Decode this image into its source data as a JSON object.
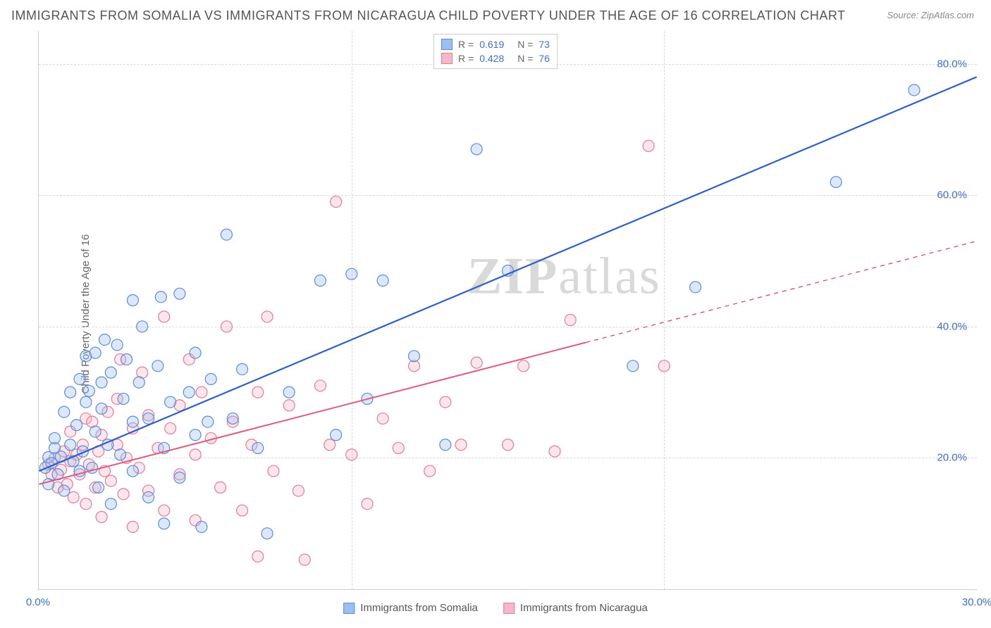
{
  "title": "IMMIGRANTS FROM SOMALIA VS IMMIGRANTS FROM NICARAGUA CHILD POVERTY UNDER THE AGE OF 16 CORRELATION CHART",
  "source": "Source: ZipAtlas.com",
  "ylabel": "Child Poverty Under the Age of 16",
  "watermark_a": "ZIP",
  "watermark_b": "atlas",
  "chart": {
    "type": "scatter",
    "background_color": "#ffffff",
    "grid_color": "#d8d8d8",
    "axis_color": "#cccccc",
    "xlim": [
      0,
      30
    ],
    "ylim": [
      0,
      85
    ],
    "yticks": [
      {
        "v": 20,
        "label": "20.0%"
      },
      {
        "v": 40,
        "label": "40.0%"
      },
      {
        "v": 60,
        "label": "60.0%"
      },
      {
        "v": 80,
        "label": "80.0%"
      }
    ],
    "xticks": [
      {
        "v": 0,
        "label": "0.0%"
      },
      {
        "v": 30,
        "label": "30.0%"
      }
    ],
    "ytick_color": "#3b6fd4",
    "xtick_color": "#3b6fd4",
    "marker_radius": 8,
    "marker_fill_opacity": 0.35,
    "marker_stroke_width": 1.2,
    "series": [
      {
        "name": "Immigrants from Somalia",
        "color_fill": "#9cbef0",
        "color_stroke": "#5a8ddb",
        "trend_color": "#2d5fc9",
        "trend_width": 2.2,
        "R": "0.619",
        "N": "73",
        "trend": {
          "x1": 0,
          "y1": 18,
          "x2": 30,
          "y2": 78,
          "dash_after_x": null
        },
        "points": [
          [
            0.2,
            18.5
          ],
          [
            0.3,
            20.1
          ],
          [
            0.4,
            19.2
          ],
          [
            0.5,
            21.5
          ],
          [
            0.5,
            23.0
          ],
          [
            0.6,
            17.5
          ],
          [
            0.7,
            20.2
          ],
          [
            0.8,
            27.0
          ],
          [
            0.8,
            15.0
          ],
          [
            1.0,
            22.0
          ],
          [
            1.0,
            30.0
          ],
          [
            1.1,
            19.5
          ],
          [
            1.2,
            25.0
          ],
          [
            1.3,
            32.0
          ],
          [
            1.3,
            18.0
          ],
          [
            1.4,
            21.0
          ],
          [
            1.5,
            28.5
          ],
          [
            1.5,
            35.5
          ],
          [
            1.6,
            30.2
          ],
          [
            1.7,
            18.5
          ],
          [
            1.8,
            36.0
          ],
          [
            1.8,
            24.0
          ],
          [
            1.9,
            15.5
          ],
          [
            2.0,
            27.5
          ],
          [
            2.0,
            31.5
          ],
          [
            2.1,
            38.0
          ],
          [
            2.2,
            22.0
          ],
          [
            2.3,
            33.0
          ],
          [
            2.3,
            13.0
          ],
          [
            2.5,
            37.2
          ],
          [
            2.6,
            20.5
          ],
          [
            2.7,
            29.0
          ],
          [
            2.8,
            35.0
          ],
          [
            3.0,
            44.0
          ],
          [
            3.0,
            25.5
          ],
          [
            3.0,
            18.0
          ],
          [
            3.2,
            31.5
          ],
          [
            3.3,
            40.0
          ],
          [
            3.5,
            26.0
          ],
          [
            3.5,
            14.0
          ],
          [
            3.8,
            34.0
          ],
          [
            3.9,
            44.5
          ],
          [
            4.0,
            21.5
          ],
          [
            4.0,
            10.0
          ],
          [
            4.2,
            28.5
          ],
          [
            4.5,
            45.0
          ],
          [
            4.5,
            17.0
          ],
          [
            4.8,
            30.0
          ],
          [
            5.0,
            36.0
          ],
          [
            5.0,
            23.5
          ],
          [
            5.2,
            9.5
          ],
          [
            5.4,
            25.5
          ],
          [
            5.5,
            32.0
          ],
          [
            6.0,
            54.0
          ],
          [
            6.2,
            26.0
          ],
          [
            6.5,
            33.5
          ],
          [
            7.0,
            21.5
          ],
          [
            7.3,
            8.5
          ],
          [
            8.0,
            30.0
          ],
          [
            9.0,
            47.0
          ],
          [
            9.5,
            23.5
          ],
          [
            10.0,
            48.0
          ],
          [
            10.5,
            29.0
          ],
          [
            11.0,
            47.0
          ],
          [
            12.0,
            35.5
          ],
          [
            13.0,
            22.0
          ],
          [
            14.0,
            67.0
          ],
          [
            15.0,
            48.5
          ],
          [
            19.0,
            34.0
          ],
          [
            21.0,
            46.0
          ],
          [
            25.5,
            62.0
          ],
          [
            28.0,
            76.0
          ],
          [
            0.3,
            16.0
          ]
        ]
      },
      {
        "name": "Immigrants from Nicaragua",
        "color_fill": "#f4b8c8",
        "color_stroke": "#e77a9a",
        "trend_color": "#e05a7e",
        "trend_width": 2.0,
        "R": "0.428",
        "N": "76",
        "trend": {
          "x1": 0,
          "y1": 16,
          "x2": 30,
          "y2": 53,
          "dash_after_x": 17.5
        },
        "points": [
          [
            0.3,
            19.0
          ],
          [
            0.4,
            17.5
          ],
          [
            0.5,
            20.0
          ],
          [
            0.6,
            15.5
          ],
          [
            0.7,
            18.2
          ],
          [
            0.8,
            21.0
          ],
          [
            0.9,
            16.0
          ],
          [
            1.0,
            19.5
          ],
          [
            1.0,
            24.0
          ],
          [
            1.1,
            14.0
          ],
          [
            1.2,
            20.5
          ],
          [
            1.3,
            17.5
          ],
          [
            1.4,
            22.0
          ],
          [
            1.5,
            26.0
          ],
          [
            1.5,
            13.0
          ],
          [
            1.6,
            19.0
          ],
          [
            1.7,
            25.5
          ],
          [
            1.8,
            15.5
          ],
          [
            1.9,
            21.0
          ],
          [
            2.0,
            23.5
          ],
          [
            2.0,
            11.0
          ],
          [
            2.1,
            18.0
          ],
          [
            2.2,
            27.0
          ],
          [
            2.3,
            16.5
          ],
          [
            2.5,
            29.0
          ],
          [
            2.5,
            22.0
          ],
          [
            2.6,
            35.0
          ],
          [
            2.7,
            14.5
          ],
          [
            2.8,
            20.0
          ],
          [
            3.0,
            24.5
          ],
          [
            3.0,
            9.5
          ],
          [
            3.2,
            18.5
          ],
          [
            3.3,
            33.0
          ],
          [
            3.5,
            26.5
          ],
          [
            3.5,
            15.0
          ],
          [
            3.8,
            21.5
          ],
          [
            4.0,
            41.5
          ],
          [
            4.0,
            12.0
          ],
          [
            4.2,
            24.5
          ],
          [
            4.5,
            17.5
          ],
          [
            4.5,
            28.0
          ],
          [
            4.8,
            35.0
          ],
          [
            5.0,
            20.5
          ],
          [
            5.0,
            10.5
          ],
          [
            5.2,
            30.0
          ],
          [
            5.5,
            23.0
          ],
          [
            5.8,
            15.5
          ],
          [
            6.0,
            40.0
          ],
          [
            6.2,
            25.5
          ],
          [
            6.5,
            12.0
          ],
          [
            6.8,
            22.0
          ],
          [
            7.0,
            30.0
          ],
          [
            7.0,
            5.0
          ],
          [
            7.3,
            41.5
          ],
          [
            7.5,
            18.0
          ],
          [
            8.0,
            28.0
          ],
          [
            8.3,
            15.0
          ],
          [
            8.5,
            4.5
          ],
          [
            9.0,
            31.0
          ],
          [
            9.3,
            22.0
          ],
          [
            9.5,
            59.0
          ],
          [
            10.0,
            20.5
          ],
          [
            10.5,
            13.0
          ],
          [
            11.0,
            26.0
          ],
          [
            11.5,
            21.5
          ],
          [
            12.0,
            34.0
          ],
          [
            12.5,
            18.0
          ],
          [
            13.0,
            28.5
          ],
          [
            13.5,
            22.0
          ],
          [
            14.0,
            34.5
          ],
          [
            15.0,
            22.0
          ],
          [
            15.5,
            34.0
          ],
          [
            16.5,
            21.0
          ],
          [
            17.0,
            41.0
          ],
          [
            19.5,
            67.5
          ],
          [
            20.0,
            34.0
          ]
        ]
      }
    ],
    "legend": {
      "r_label": "R  =",
      "n_label": "N  =",
      "value_color": "#3b6fd4",
      "label_color": "#666"
    }
  }
}
